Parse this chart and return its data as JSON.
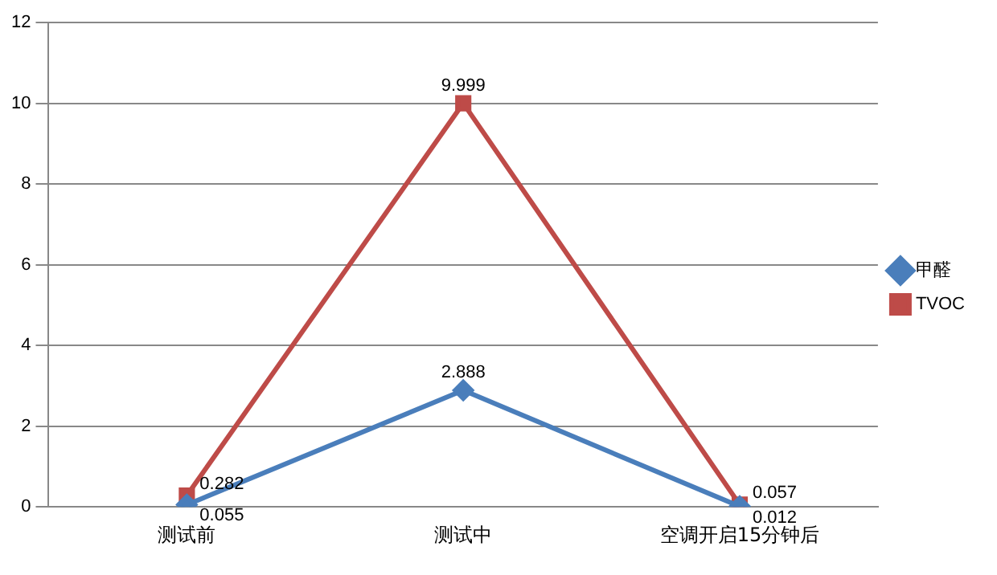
{
  "chart_data": {
    "type": "line",
    "categories": [
      "测试前",
      "测试中",
      "空调开启15分钟后"
    ],
    "series": [
      {
        "name": "甲醛",
        "color": "#4a7ebb",
        "values": [
          0.055,
          2.888,
          0.012
        ],
        "marker": "diamond"
      },
      {
        "name": "TVOC",
        "color": "#be4b48",
        "values": [
          0.282,
          9.999,
          0.057
        ],
        "marker": "square"
      }
    ],
    "ylim": [
      0,
      12
    ],
    "yticks": [
      0,
      2,
      4,
      6,
      8,
      10,
      12
    ],
    "grid": "y",
    "legend": "right",
    "data_labels": true,
    "line_style": "solid"
  }
}
